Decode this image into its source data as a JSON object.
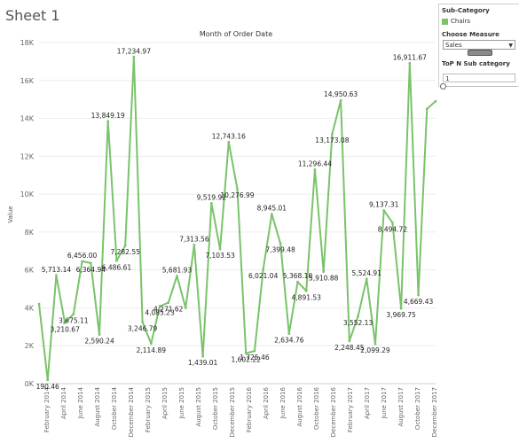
{
  "sheet": {
    "title": "Sheet 1"
  },
  "panel": {
    "subcategory_heading": "Sub-Category",
    "legend_item": "Chairs",
    "legend_color": "#79c36a",
    "measure_heading": "Choose Measure",
    "measure_value": "Sales",
    "topn_heading": "ToP N Sub category",
    "topn_value": "1"
  },
  "chart_data": {
    "type": "line",
    "title": "Month of Order Date",
    "ylabel": "Value",
    "ylim": [
      0,
      18000
    ],
    "yticks": [
      0,
      2000,
      4000,
      6000,
      8000,
      10000,
      12000,
      14000,
      16000,
      18000
    ],
    "ytick_labels": [
      "0K",
      "2K",
      "4K",
      "6K",
      "8K",
      "10K",
      "12K",
      "14K",
      "16K",
      "18K"
    ],
    "x_tick_labels": [
      "February 2014",
      "April 2014",
      "June 2014",
      "August 2014",
      "October 2014",
      "December 2014",
      "February 2015",
      "April 2015",
      "June 2015",
      "August 2015",
      "October 2015",
      "December 2015",
      "February 2016",
      "April 2016",
      "June 2016",
      "August 2016",
      "October 2016",
      "December 2016",
      "February 2017",
      "April 2017",
      "June 2017",
      "August 2017",
      "October 2017",
      "December 2017"
    ],
    "line_color": "#79c36a",
    "series": [
      {
        "values": [
          4200,
          190.46,
          5713.14,
          3210.67,
          3675.11,
          6456.0,
          6364.94,
          2590.24,
          13849.19,
          6486.61,
          7282.55,
          17234.97,
          3246.79,
          2114.89,
          4085.23,
          4271.62,
          5681.93,
          4000,
          7313.56,
          1439.01,
          9519.92,
          7103.53,
          12743.16,
          10276.99,
          1602.22,
          1725.46,
          6021.04,
          8945.01,
          7399.48,
          2634.76,
          5368.1,
          4891.53,
          11296.44,
          5910.88,
          13173.08,
          14950.63,
          2248.45,
          3552.13,
          5524.91,
          2099.29,
          9137.31,
          8494.72,
          3969.75,
          16911.67,
          4669.43,
          14500,
          14900
        ],
        "labels": [
          "",
          "190.46",
          "5,713.14",
          "3,210.67",
          "3,675.11",
          "6,456.00",
          "6,364.94",
          "2,590.24",
          "13,849.19",
          "6,486.61",
          "7,282.55",
          "17,234.97",
          "3,246.79",
          "2,114.89",
          "4,085.23",
          "4,271.62",
          "5,681.93",
          "",
          "7,313.56",
          "1,439.01",
          "9,519.92",
          "7,103.53",
          "12,743.16",
          "10,276.99",
          "1,602.22",
          "1,725.46",
          "6,021.04",
          "8,945.01",
          "7,399.48",
          "2,634.76",
          "5,368.10",
          "4,891.53",
          "11,296.44",
          "5,910.88",
          "13,173.08",
          "14,950.63",
          "2,248.45",
          "3,552.13",
          "5,524.91",
          "2,099.29",
          "9,137.31",
          "8,494.72",
          "3,969.75",
          "16,911.67",
          "4,669.43",
          "",
          ""
        ]
      }
    ]
  }
}
